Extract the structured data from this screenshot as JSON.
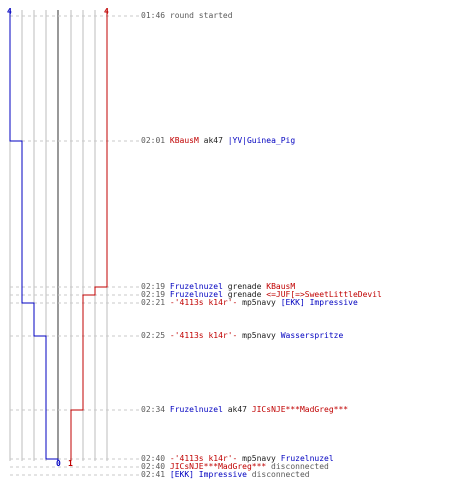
{
  "scores": {
    "blue_start": "4",
    "red_start": "4",
    "blue_end": "0",
    "red_end": "1"
  },
  "colors": {
    "blue": "#0000c0",
    "red": "#c00000",
    "grid": "#bdbdbd",
    "dash": "#c8c8c8",
    "mid": "#555555",
    "text": "#5a5a5a"
  },
  "events": [
    {
      "time": "01:46",
      "parts": [
        {
          "text": "round started",
          "color": "gray"
        }
      ]
    },
    {
      "time": "02:01",
      "parts": [
        {
          "text": "KBausM",
          "color": "red"
        },
        {
          "text": " ak47 ",
          "color": "black"
        },
        {
          "text": "|YV|Guinea_Pig",
          "color": "blue"
        }
      ]
    },
    {
      "time": "02:19",
      "parts": [
        {
          "text": "Fruzelnuzel",
          "color": "blue"
        },
        {
          "text": " grenade ",
          "color": "black"
        },
        {
          "text": "KBausM",
          "color": "red"
        }
      ]
    },
    {
      "time": "02:19",
      "parts": [
        {
          "text": "Fruzelnuzel",
          "color": "blue"
        },
        {
          "text": " grenade ",
          "color": "black"
        },
        {
          "text": "<=JUF[=>SweetLittleDevil",
          "color": "red"
        }
      ]
    },
    {
      "time": "02:21",
      "parts": [
        {
          "text": "-'4113s k14r'-",
          "color": "red"
        },
        {
          "text": " mp5navy ",
          "color": "black"
        },
        {
          "text": "[EKK] Impressive",
          "color": "blue"
        }
      ]
    },
    {
      "time": "02:25",
      "parts": [
        {
          "text": "-'4113s k14r'-",
          "color": "red"
        },
        {
          "text": " mp5navy ",
          "color": "black"
        },
        {
          "text": "Wasserspritze",
          "color": "blue"
        }
      ]
    },
    {
      "time": "02:34",
      "parts": [
        {
          "text": "Fruzelnuzel",
          "color": "blue"
        },
        {
          "text": " ak47 ",
          "color": "black"
        },
        {
          "text": "JICsNJE***MadGreg***",
          "color": "red"
        }
      ]
    },
    {
      "time": "02:40",
      "parts": [
        {
          "text": "-'4113s k14r'-",
          "color": "red"
        },
        {
          "text": " mp5navy ",
          "color": "black"
        },
        {
          "text": "Fruzelnuzel",
          "color": "blue"
        }
      ]
    },
    {
      "time": "02:40",
      "parts": [
        {
          "text": "JICsNJE***MadGreg***",
          "color": "red"
        },
        {
          "text": " disconnected",
          "color": "gray"
        }
      ]
    },
    {
      "time": "02:41",
      "parts": [
        {
          "text": "[EKK] Impressive",
          "color": "blue"
        },
        {
          "text": " disconnected",
          "color": "gray"
        }
      ]
    }
  ]
}
